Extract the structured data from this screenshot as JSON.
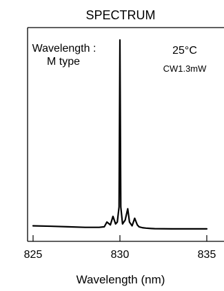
{
  "chart_data": {
    "type": "line",
    "title": "SPECTRUM",
    "xlabel": "Wavelength (nm)",
    "ylabel": "",
    "xlim": [
      825,
      835
    ],
    "x_ticks": [
      825,
      830,
      835
    ],
    "x_tick_labels": [
      "825",
      "830",
      "835"
    ],
    "annotations": {
      "wavelength_label_1": "Wavelength :",
      "wavelength_label_2": "M type",
      "temperature": "25°C",
      "power": "CW1.3mW"
    },
    "series": [
      {
        "values_x": [
          825.0,
          826.0,
          827.0,
          828.0,
          828.8,
          829.1,
          829.25,
          829.45,
          829.6,
          829.75,
          829.85,
          829.95,
          830.0,
          830.05,
          830.15,
          830.3,
          830.45,
          830.55,
          830.7,
          830.85,
          831.0,
          831.1,
          831.3,
          831.5,
          831.8,
          832.0,
          833.0,
          834.0,
          835.0
        ],
        "values_y": [
          0.02,
          0.018,
          0.015,
          0.012,
          0.012,
          0.015,
          0.04,
          0.025,
          0.07,
          0.03,
          0.04,
          0.12,
          1.0,
          0.12,
          0.03,
          0.05,
          0.11,
          0.04,
          0.02,
          0.06,
          0.025,
          0.015,
          0.01,
          0.008,
          0.006,
          0.005,
          0.004,
          0.004,
          0.004
        ]
      }
    ],
    "grid": false
  }
}
